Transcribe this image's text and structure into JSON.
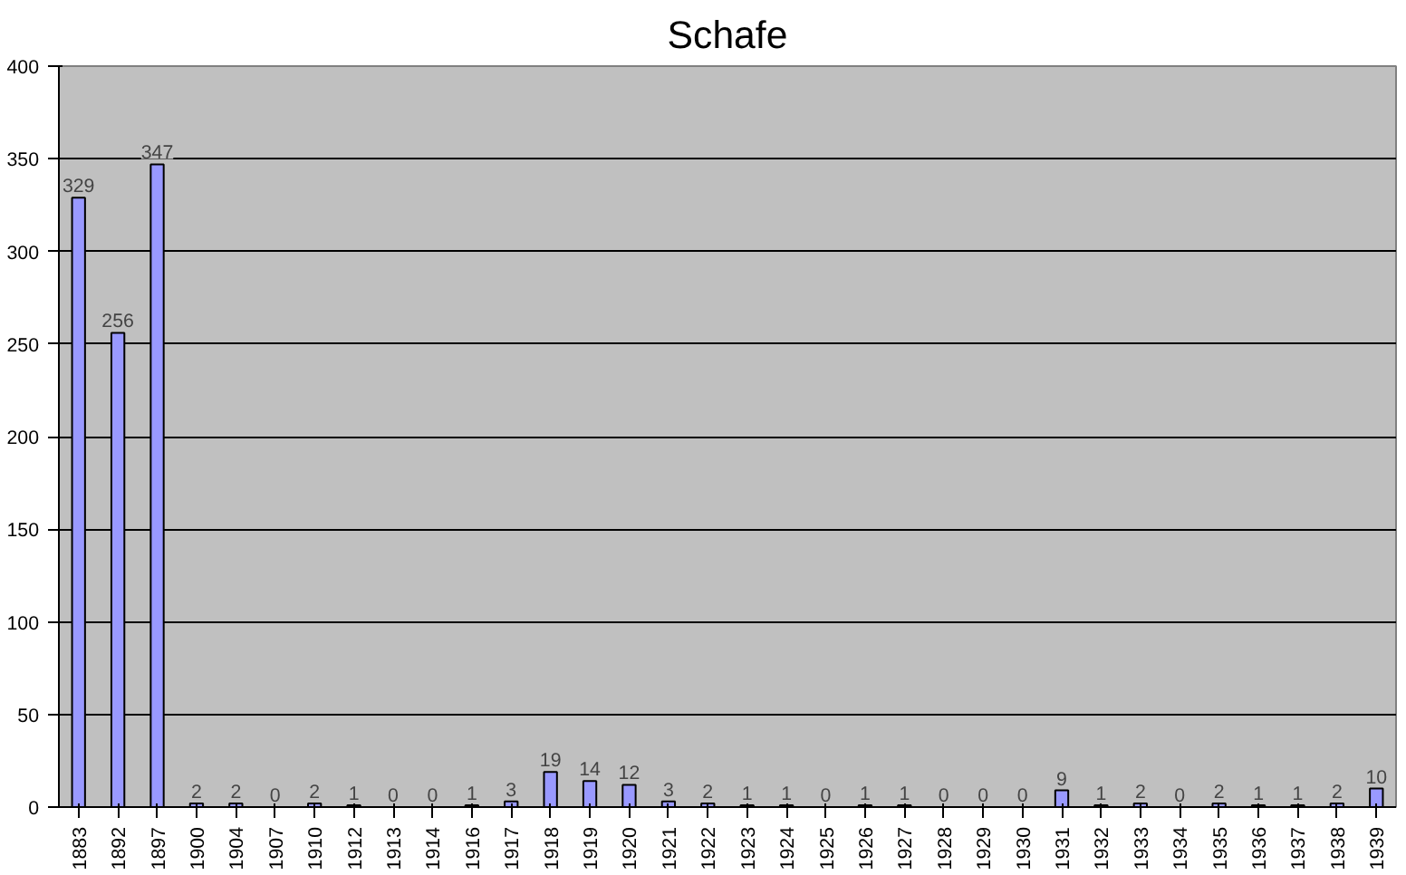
{
  "chart_data": {
    "type": "bar",
    "title": "Schafe",
    "categories": [
      "1883",
      "1892",
      "1897",
      "1900",
      "1904",
      "1907",
      "1910",
      "1912",
      "1913",
      "1914",
      "1916",
      "1917",
      "1918",
      "1919",
      "1920",
      "1921",
      "1922",
      "1923",
      "1924",
      "1925",
      "1926",
      "1927",
      "1928",
      "1929",
      "1930",
      "1931",
      "1932",
      "1933",
      "1934",
      "1935",
      "1936",
      "1937",
      "1938",
      "1939"
    ],
    "values": [
      329,
      256,
      347,
      2,
      2,
      0,
      2,
      1,
      0,
      0,
      1,
      3,
      19,
      14,
      12,
      3,
      2,
      1,
      1,
      0,
      1,
      1,
      0,
      0,
      0,
      9,
      1,
      2,
      0,
      2,
      1,
      1,
      2,
      10
    ],
    "color": "#9999ff",
    "ylim": [
      0,
      400
    ],
    "yticks": [
      0,
      50,
      100,
      150,
      200,
      250,
      300,
      350,
      400
    ],
    "grid": "y",
    "data_labels": true
  }
}
